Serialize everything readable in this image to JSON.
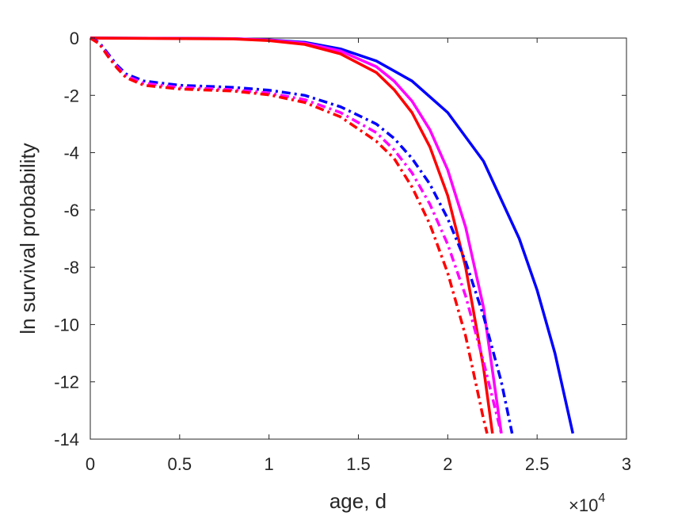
{
  "chart_data": {
    "type": "line",
    "title": "",
    "xlabel": "age, d",
    "ylabel": "ln survival probability",
    "x_exponent_label": {
      "base": "×10",
      "power": "4"
    },
    "xlim": [
      0,
      3
    ],
    "ylim": [
      -14,
      0
    ],
    "x_ticks": [
      "0",
      "0.5",
      "1",
      "1.5",
      "2",
      "2.5",
      "3"
    ],
    "y_ticks": [
      "0",
      "-2",
      "-4",
      "-6",
      "-8",
      "-10",
      "-12",
      "-14"
    ],
    "grid": false,
    "legend": "none",
    "series": [
      {
        "color": "#0000ff",
        "style": "solid",
        "points": [
          [
            0,
            0
          ],
          [
            0.8,
            -0.02
          ],
          [
            1.0,
            -0.06
          ],
          [
            1.2,
            -0.15
          ],
          [
            1.4,
            -0.38
          ],
          [
            1.6,
            -0.8
          ],
          [
            1.8,
            -1.5
          ],
          [
            2.0,
            -2.6
          ],
          [
            2.2,
            -4.3
          ],
          [
            2.4,
            -7.0
          ],
          [
            2.5,
            -8.8
          ],
          [
            2.6,
            -11.0
          ],
          [
            2.7,
            -13.8
          ]
        ]
      },
      {
        "color": "#ff00ff",
        "style": "solid",
        "points": [
          [
            0,
            0
          ],
          [
            0.8,
            -0.02
          ],
          [
            1.0,
            -0.07
          ],
          [
            1.2,
            -0.18
          ],
          [
            1.4,
            -0.45
          ],
          [
            1.6,
            -1.0
          ],
          [
            1.7,
            -1.5
          ],
          [
            1.8,
            -2.2
          ],
          [
            1.9,
            -3.2
          ],
          [
            2.0,
            -4.6
          ],
          [
            2.1,
            -6.6
          ],
          [
            2.2,
            -9.4
          ],
          [
            2.3,
            -13.8
          ]
        ]
      },
      {
        "color": "#ff0000",
        "style": "solid",
        "points": [
          [
            0,
            0
          ],
          [
            0.8,
            -0.03
          ],
          [
            1.0,
            -0.09
          ],
          [
            1.2,
            -0.22
          ],
          [
            1.4,
            -0.55
          ],
          [
            1.6,
            -1.2
          ],
          [
            1.7,
            -1.8
          ],
          [
            1.8,
            -2.6
          ],
          [
            1.9,
            -3.8
          ],
          [
            2.0,
            -5.5
          ],
          [
            2.1,
            -8.0
          ],
          [
            2.2,
            -11.5
          ],
          [
            2.25,
            -13.8
          ]
        ]
      },
      {
        "color": "#0000ff",
        "style": "dashdot",
        "points": [
          [
            0,
            0
          ],
          [
            0.05,
            -0.15
          ],
          [
            0.1,
            -0.55
          ],
          [
            0.15,
            -0.95
          ],
          [
            0.2,
            -1.25
          ],
          [
            0.3,
            -1.5
          ],
          [
            0.5,
            -1.65
          ],
          [
            0.8,
            -1.72
          ],
          [
            1.0,
            -1.82
          ],
          [
            1.2,
            -2.0
          ],
          [
            1.4,
            -2.4
          ],
          [
            1.6,
            -3.0
          ],
          [
            1.7,
            -3.5
          ],
          [
            1.8,
            -4.2
          ],
          [
            1.9,
            -5.1
          ],
          [
            2.0,
            -6.3
          ],
          [
            2.1,
            -7.8
          ],
          [
            2.2,
            -9.7
          ],
          [
            2.3,
            -12.0
          ],
          [
            2.36,
            -13.8
          ]
        ]
      },
      {
        "color": "#ff00ff",
        "style": "dashdot",
        "points": [
          [
            0,
            0
          ],
          [
            0.05,
            -0.18
          ],
          [
            0.1,
            -0.6
          ],
          [
            0.15,
            -1.0
          ],
          [
            0.2,
            -1.32
          ],
          [
            0.3,
            -1.58
          ],
          [
            0.5,
            -1.72
          ],
          [
            0.8,
            -1.8
          ],
          [
            1.0,
            -1.92
          ],
          [
            1.2,
            -2.15
          ],
          [
            1.4,
            -2.6
          ],
          [
            1.6,
            -3.3
          ],
          [
            1.7,
            -3.9
          ],
          [
            1.8,
            -4.7
          ],
          [
            1.9,
            -5.8
          ],
          [
            2.0,
            -7.2
          ],
          [
            2.1,
            -9.0
          ],
          [
            2.2,
            -11.3
          ],
          [
            2.3,
            -13.8
          ]
        ]
      },
      {
        "color": "#ff0000",
        "style": "dashdot",
        "points": [
          [
            0,
            0
          ],
          [
            0.05,
            -0.2
          ],
          [
            0.1,
            -0.65
          ],
          [
            0.15,
            -1.05
          ],
          [
            0.2,
            -1.38
          ],
          [
            0.3,
            -1.65
          ],
          [
            0.5,
            -1.78
          ],
          [
            0.8,
            -1.85
          ],
          [
            1.0,
            -1.98
          ],
          [
            1.2,
            -2.25
          ],
          [
            1.4,
            -2.75
          ],
          [
            1.6,
            -3.6
          ],
          [
            1.7,
            -4.2
          ],
          [
            1.8,
            -5.2
          ],
          [
            1.9,
            -6.5
          ],
          [
            2.0,
            -8.2
          ],
          [
            2.1,
            -10.4
          ],
          [
            2.2,
            -13.3
          ],
          [
            2.22,
            -13.8
          ]
        ]
      }
    ]
  }
}
